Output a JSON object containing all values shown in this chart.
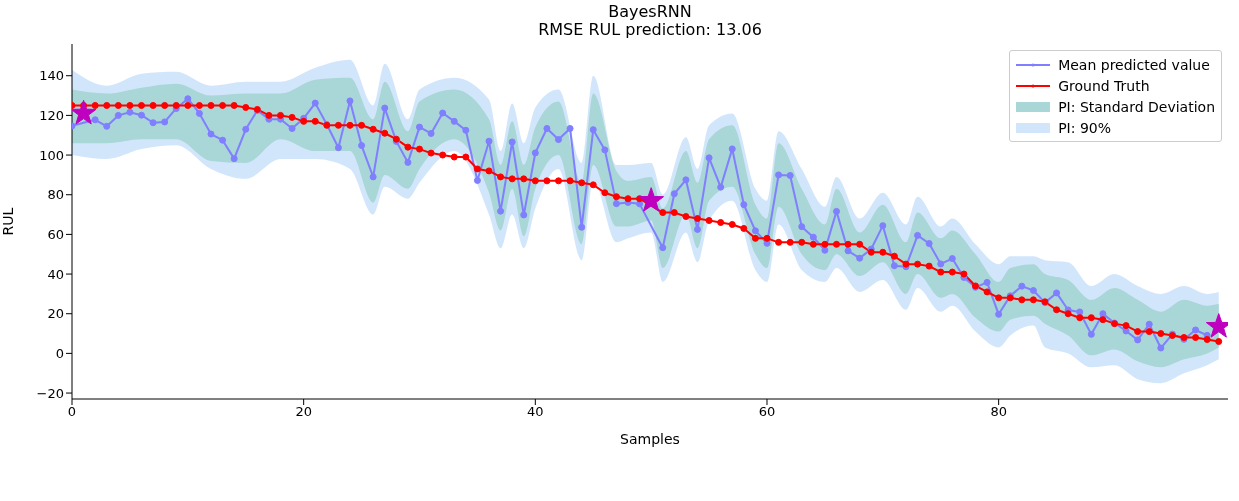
{
  "chart_data": {
    "type": "line",
    "title": "BayesRNN",
    "subtitle": "RMSE RUL prediction: 13.06",
    "xlabel": "Samples",
    "ylabel": "RUL",
    "x": [
      0,
      1,
      2,
      3,
      4,
      5,
      6,
      7,
      8,
      9,
      10,
      11,
      12,
      13,
      14,
      15,
      16,
      17,
      18,
      19,
      20,
      21,
      22,
      23,
      24,
      25,
      26,
      27,
      28,
      29,
      30,
      31,
      32,
      33,
      34,
      35,
      36,
      37,
      38,
      39,
      40,
      41,
      42,
      43,
      44,
      45,
      46,
      47,
      48,
      49,
      50,
      51,
      52,
      53,
      54,
      55,
      56,
      57,
      58,
      59,
      60,
      61,
      62,
      63,
      64,
      65,
      66,
      67,
      68,
      69,
      70,
      71,
      72,
      73,
      74,
      75,
      76,
      77,
      78,
      79,
      80,
      81,
      82,
      83,
      84,
      85,
      86,
      87,
      88,
      89,
      90,
      91,
      92,
      93,
      94,
      95,
      96,
      97,
      98,
      99
    ],
    "series": [
      {
        "name": "Mean predicted value",
        "type": "line",
        "color": "#7f7fff",
        "marker": "circle",
        "values": [
          114.7,
          null,
          117.8,
          114.5,
          120,
          121.6,
          120.1,
          116.3,
          116.7,
          123.5,
          128.4,
          121,
          110.6,
          107.5,
          98.2,
          113,
          122.5,
          118.1,
          118.1,
          113.4,
          118.5,
          126.2,
          115.4,
          103.7,
          127.3,
          104.8,
          89,
          123.7,
          106.9,
          96.3,
          114.1,
          110.9,
          121.2,
          117,
          112.5,
          87.2,
          107,
          71.7,
          106.6,
          69.8,
          101.1,
          113.4,
          107.8,
          113.4,
          63.6,
          112.8,
          102.6,
          75.5,
          76.1,
          75.4,
          null,
          53.3,
          80.5,
          87.5,
          62.5,
          98.6,
          83.8,
          103.1,
          75,
          61.8,
          55.5,
          90,
          89.7,
          63.9,
          58.6,
          52,
          71.6,
          51.7,
          48,
          52.6,
          64.4,
          44.2,
          43.7,
          59.5,
          55.4,
          45.1,
          47.8,
          38.3,
          33.3,
          35.8,
          19.7,
          29,
          33.9,
          31.7,
          25.6,
          30.5,
          21.9,
          20.9,
          9.6,
          20,
          15.3,
          11.3,
          6.8,
          14.7,
          2.7,
          9.7,
          7.1,
          11.8,
          9.1,
          null
        ]
      },
      {
        "name": "Ground Truth",
        "type": "line",
        "color": "#ff0000",
        "marker": "circle",
        "values": [
          125,
          125,
          125,
          125,
          125,
          125,
          125,
          125,
          125,
          125,
          125,
          125,
          125,
          125,
          125,
          124,
          123,
          120,
          120,
          119,
          117,
          117,
          115,
          115,
          115,
          115,
          113,
          111,
          108,
          104,
          103,
          101,
          100,
          99,
          99,
          93,
          92,
          89,
          88,
          88,
          87,
          87,
          87,
          87,
          86,
          85,
          81,
          79,
          78,
          78,
          null,
          71,
          71,
          69,
          68,
          67,
          66,
          65,
          63,
          58,
          58,
          56,
          56,
          56,
          55,
          55,
          55,
          55,
          55,
          51,
          51,
          49,
          45,
          45,
          44,
          41,
          41,
          40,
          34,
          31,
          28,
          28,
          27,
          27,
          26,
          22,
          20,
          18,
          18,
          17,
          15,
          14,
          11,
          11,
          10,
          9,
          8,
          8,
          7,
          6
        ]
      },
      {
        "name": "PI: Standard Deviation",
        "type": "area",
        "color": "#a9d6d6",
        "x": [
          0,
          3,
          6,
          9,
          12,
          15,
          18,
          21,
          24,
          26,
          27,
          29,
          30,
          33,
          36,
          37,
          38,
          39,
          40,
          42,
          44,
          45,
          47,
          48,
          50,
          51,
          53,
          54,
          55,
          57,
          59,
          60,
          61,
          63,
          65,
          66,
          68,
          70,
          72,
          73,
          75,
          76,
          78,
          80,
          81,
          83,
          84,
          86,
          88,
          90,
          92,
          94,
          96,
          98,
          99
        ],
        "values": [
          null,
          null,
          null,
          null,
          null,
          null,
          null,
          null,
          null,
          null,
          null,
          null,
          null,
          null,
          null,
          null,
          null,
          null,
          null,
          null,
          null,
          null,
          null,
          null,
          null,
          null,
          null,
          null,
          null,
          null,
          null,
          null,
          null,
          null,
          null,
          null,
          null,
          null,
          null,
          null,
          null,
          null,
          null,
          null,
          null,
          null,
          null,
          null,
          null,
          null,
          null,
          null,
          null,
          null,
          null
        ],
        "lower": [
          106,
          106,
          108,
          108,
          97,
          96,
          108,
          102,
          102,
          76,
          90,
          83,
          93,
          108,
          81,
          62,
          83,
          59,
          83,
          100,
          55,
          95,
          64,
          64,
          67,
          43,
          70,
          53,
          77,
          84,
          50,
          43,
          74,
          50,
          42,
          50,
          39,
          46,
          30,
          40,
          28,
          30,
          18,
          11,
          17,
          19,
          15,
          9,
          -1,
          2,
          -4,
          -7,
          -3,
          0,
          3
        ],
        "upper": [
          133,
          131,
          134,
          136,
          130,
          131,
          131,
          138,
          139,
          118,
          137,
          112,
          127,
          133,
          118,
          95,
          117,
          95,
          114,
          127,
          86,
          131,
          92,
          87,
          89,
          73,
          102,
          86,
          108,
          115,
          75,
          68,
          106,
          83,
          65,
          83,
          61,
          75,
          56,
          71,
          58,
          62,
          50,
          36,
          43,
          45,
          40,
          37,
          27,
          33,
          27,
          21,
          27,
          24,
          25
        ]
      },
      {
        "name": "PI: 90%",
        "type": "area",
        "color": "#d2e6fb",
        "x": [
          0,
          3,
          6,
          9,
          12,
          15,
          18,
          21,
          24,
          26,
          27,
          29,
          30,
          33,
          36,
          37,
          38,
          39,
          40,
          42,
          44,
          45,
          47,
          48,
          50,
          51,
          53,
          54,
          55,
          57,
          59,
          60,
          61,
          63,
          65,
          66,
          68,
          70,
          72,
          73,
          75,
          76,
          78,
          80,
          81,
          83,
          84,
          86,
          88,
          90,
          92,
          94,
          96,
          98,
          99
        ],
        "values": [
          null,
          null,
          null,
          null,
          null,
          null,
          null,
          null,
          null,
          null,
          null,
          null,
          null,
          null,
          null,
          null,
          null,
          null,
          null,
          null,
          null,
          null,
          null,
          null,
          null,
          null,
          null,
          null,
          null,
          null,
          null,
          null,
          null,
          null,
          null,
          null,
          null,
          null,
          null,
          null,
          null,
          null,
          null,
          null,
          null,
          null,
          null,
          null,
          null,
          null,
          null,
          null,
          null,
          null,
          null
        ],
        "lower": [
          100,
          98,
          103,
          105,
          93,
          88,
          98,
          98,
          93,
          70,
          84,
          78,
          86,
          102,
          70,
          53,
          70,
          53,
          73,
          93,
          47,
          87,
          56,
          58,
          61,
          36,
          61,
          46,
          67,
          77,
          42,
          36,
          65,
          42,
          36,
          43,
          31,
          37,
          22,
          33,
          21,
          24,
          11,
          3,
          9,
          14,
          3,
          0,
          -7,
          -6,
          -13,
          -15,
          -10,
          -6,
          -3
        ],
        "upper": [
          143,
          135,
          141,
          142,
          135,
          137,
          137,
          144,
          148,
          125,
          146,
          118,
          133,
          139,
          128,
          102,
          126,
          106,
          124,
          133,
          96,
          140,
          95,
          95,
          96,
          80,
          109,
          93,
          115,
          121,
          83,
          77,
          112,
          93,
          74,
          89,
          68,
          81,
          65,
          79,
          64,
          68,
          55,
          45,
          49,
          49,
          47,
          46,
          34,
          40,
          34,
          30,
          34,
          30,
          31
        ]
      },
      {
        "type": "scatter",
        "color": "#bf00bf",
        "marker": "star",
        "x": [
          1,
          50,
          99
        ],
        "values": [
          121,
          77,
          13.5
        ]
      }
    ],
    "xlim": [
      0,
      99.8
    ],
    "xticks": [
      0,
      20,
      40,
      60,
      80
    ],
    "ylim": [
      -23,
      156
    ],
    "yticks": [
      {
        "value": -20,
        "label": "−20"
      },
      0,
      20,
      40,
      60,
      80,
      100,
      120,
      140
    ],
    "legend": "top right"
  }
}
